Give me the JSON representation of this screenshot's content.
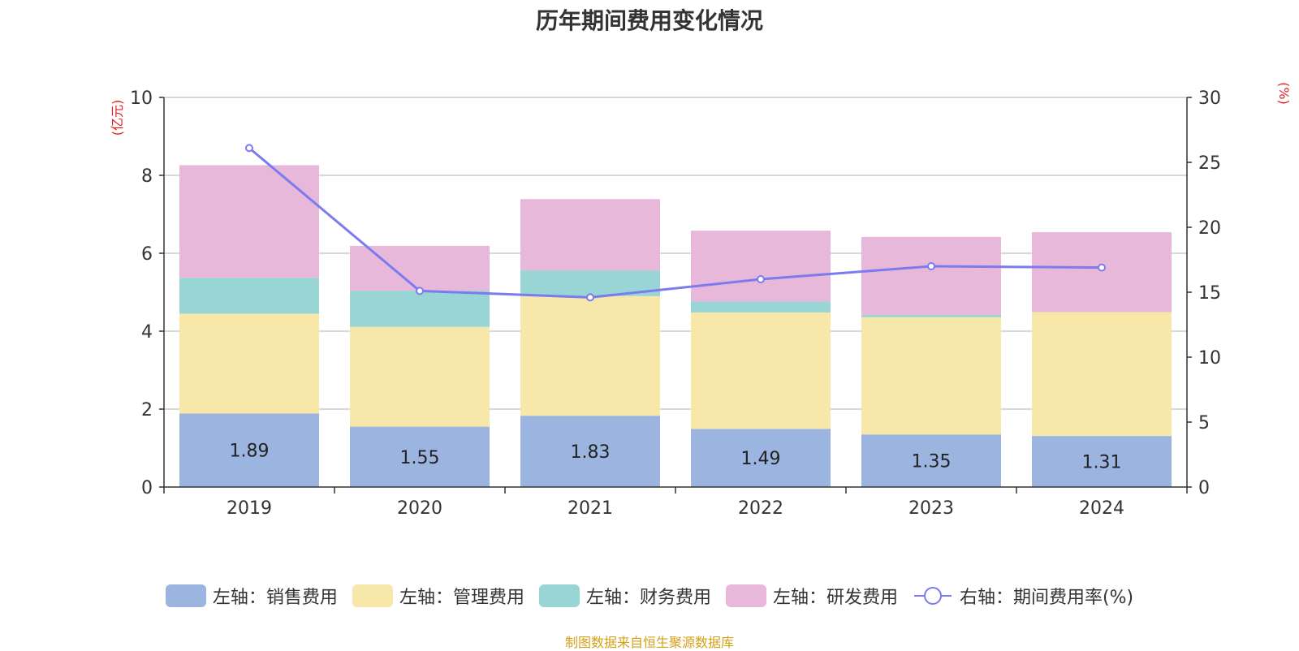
{
  "chart_data": {
    "type": "bar",
    "stacked": true,
    "title": "历年期间费用变化情况",
    "categories": [
      "2019",
      "2020",
      "2021",
      "2022",
      "2023",
      "2024"
    ],
    "series": [
      {
        "name": "左轴：销售费用",
        "axis": "left",
        "color": "#9bb5e0",
        "values": [
          1.89,
          1.55,
          1.83,
          1.49,
          1.35,
          1.31
        ],
        "show_labels": true
      },
      {
        "name": "左轴：管理费用",
        "axis": "left",
        "color": "#f7e7a8",
        "values": [
          2.56,
          2.56,
          3.07,
          2.99,
          3.01,
          3.18
        ],
        "show_labels": false
      },
      {
        "name": "左轴：财务费用",
        "axis": "left",
        "color": "#99d5d5",
        "values": [
          0.92,
          0.93,
          0.66,
          0.28,
          0.06,
          0.0
        ],
        "show_labels": false
      },
      {
        "name": "左轴：研发费用",
        "axis": "left",
        "color": "#e8b8da",
        "values": [
          2.89,
          1.15,
          1.83,
          1.82,
          2.0,
          2.05
        ],
        "show_labels": false
      }
    ],
    "line_series": {
      "name": "右轴：期间费用率(%)",
      "axis": "right",
      "color": "#7b7bef",
      "values": [
        26.1,
        15.1,
        14.6,
        16.0,
        17.0,
        16.9
      ]
    },
    "left_axis": {
      "unit": "(亿元)",
      "ylim": [
        0,
        10
      ],
      "ticks": [
        "0",
        "2",
        "4",
        "6",
        "8",
        "10"
      ],
      "tick_values": [
        0,
        2,
        4,
        6,
        8,
        10
      ]
    },
    "right_axis": {
      "unit": "(%)",
      "ylim": [
        0,
        30
      ],
      "ticks": [
        "0",
        "5",
        "10",
        "15",
        "20",
        "25",
        "30"
      ],
      "tick_values": [
        0,
        5,
        10,
        15,
        20,
        25,
        30
      ]
    },
    "grid": true,
    "legend_position": "bottom"
  },
  "source_note": "制图数据来自恒生聚源数据库",
  "colors": {
    "axis_unit": "#e02020",
    "grid": "#cccccc"
  }
}
